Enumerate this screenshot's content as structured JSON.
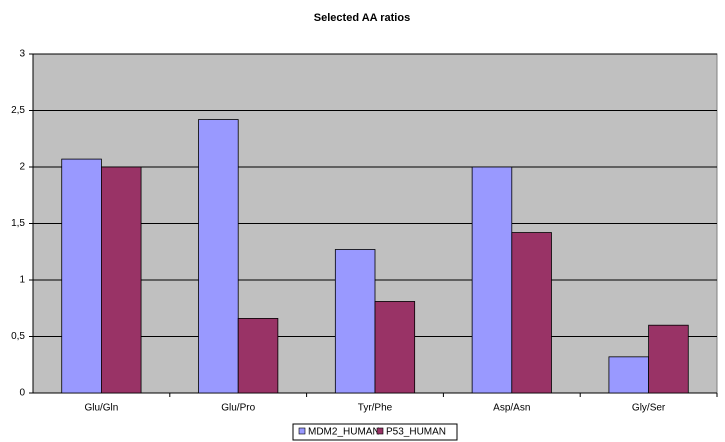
{
  "chart_data": {
    "type": "bar",
    "title": "Selected AA ratios",
    "categories": [
      "Glu/Gln",
      "Glu/Pro",
      "Tyr/Phe",
      "Asp/Asn",
      "Gly/Ser"
    ],
    "series": [
      {
        "name": "MDM2_HUMAN",
        "color": "#9999ff",
        "values": [
          2.07,
          2.42,
          1.27,
          2.0,
          0.32
        ]
      },
      {
        "name": "P53_HUMAN",
        "color": "#993366",
        "values": [
          2.0,
          0.66,
          0.81,
          1.42,
          0.6
        ]
      }
    ],
    "ylim": [
      0,
      3
    ],
    "yticks": [
      0,
      {
        "value": 0.5,
        "label": "0,5"
      },
      1,
      {
        "value": 1.5,
        "label": "1,5"
      },
      2,
      {
        "value": 2.5,
        "label": "2,5"
      },
      3
    ],
    "grid": true,
    "legend": "bottom"
  }
}
